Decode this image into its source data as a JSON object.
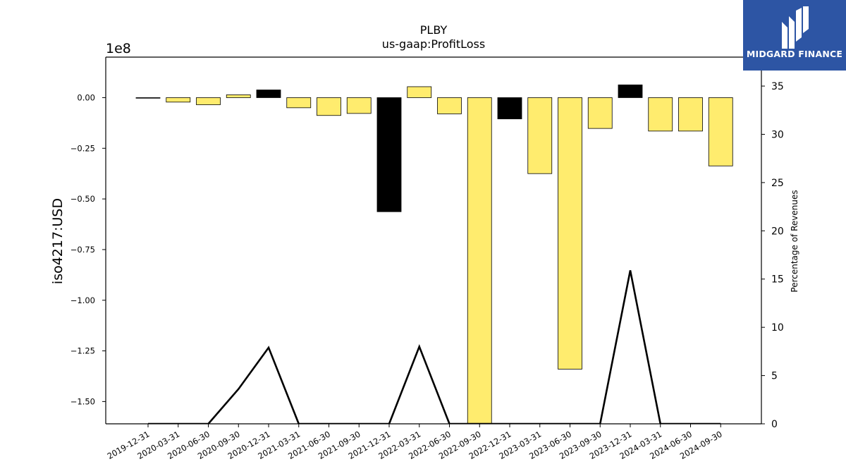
{
  "chart_data": {
    "type": "bar",
    "title": "PLBY",
    "subtitle": "us-gaap:ProfitLoss",
    "ylabel": "iso4217:USD",
    "y_offset_label": "1e8",
    "y2label": "Percentage of Revenues",
    "ylim": [
      -1.61,
      0.2
    ],
    "y_scale": 100000000,
    "yticks": [
      0.0,
      -0.25,
      -0.5,
      -0.75,
      -1.0,
      -1.25,
      -1.5
    ],
    "ytick_labels": [
      "0.00",
      "−0.25",
      "−0.50",
      "−0.75",
      "−1.00",
      "−1.25",
      "−1.50"
    ],
    "y2lim": [
      0,
      38
    ],
    "y2ticks": [
      0,
      5,
      10,
      15,
      20,
      25,
      30,
      35
    ],
    "y2tick_labels": [
      "0",
      "5",
      "10",
      "15",
      "20",
      "25",
      "30",
      "35"
    ],
    "categories": [
      "2019-12-31",
      "2020-03-31",
      "2020-06-30",
      "2020-09-30",
      "2020-12-31",
      "2021-03-31",
      "2021-06-30",
      "2021-09-30",
      "2021-12-31",
      "2022-03-31",
      "2022-06-30",
      "2022-09-30",
      "2022-12-31",
      "2023-03-31",
      "2023-06-30",
      "2023-09-30",
      "2023-12-31",
      "2024-03-31",
      "2024-06-30",
      "2024-09-30"
    ],
    "series": [
      {
        "kind": "bar",
        "values": [
          -0.002,
          -0.022,
          -0.035,
          0.014,
          0.038,
          -0.05,
          -0.088,
          -0.078,
          -0.563,
          0.054,
          -0.08,
          -1.65,
          -0.105,
          -0.375,
          -1.34,
          -0.152,
          0.063,
          -0.165,
          -0.165,
          -0.337
        ],
        "colors": [
          "#ffec6e",
          "#ffec6e",
          "#ffec6e",
          "#ffec6e",
          "#000000",
          "#ffec6e",
          "#ffec6e",
          "#ffec6e",
          "#000000",
          "#ffec6e",
          "#ffec6e",
          "#ffec6e",
          "#000000",
          "#ffec6e",
          "#ffec6e",
          "#ffec6e",
          "#000000",
          "#ffec6e",
          "#ffec6e",
          "#ffec6e"
        ]
      },
      {
        "kind": "line",
        "axis": "right",
        "color": "#000000",
        "values": [
          0,
          0,
          0,
          3.6,
          7.9,
          0,
          0,
          0,
          0,
          8.0,
          0,
          0,
          0,
          0,
          0,
          0,
          15.9,
          0,
          0,
          0
        ]
      }
    ],
    "grid": false
  },
  "logo": {
    "text": "MIDGARD FINANCE",
    "background": "#2d55a4"
  }
}
